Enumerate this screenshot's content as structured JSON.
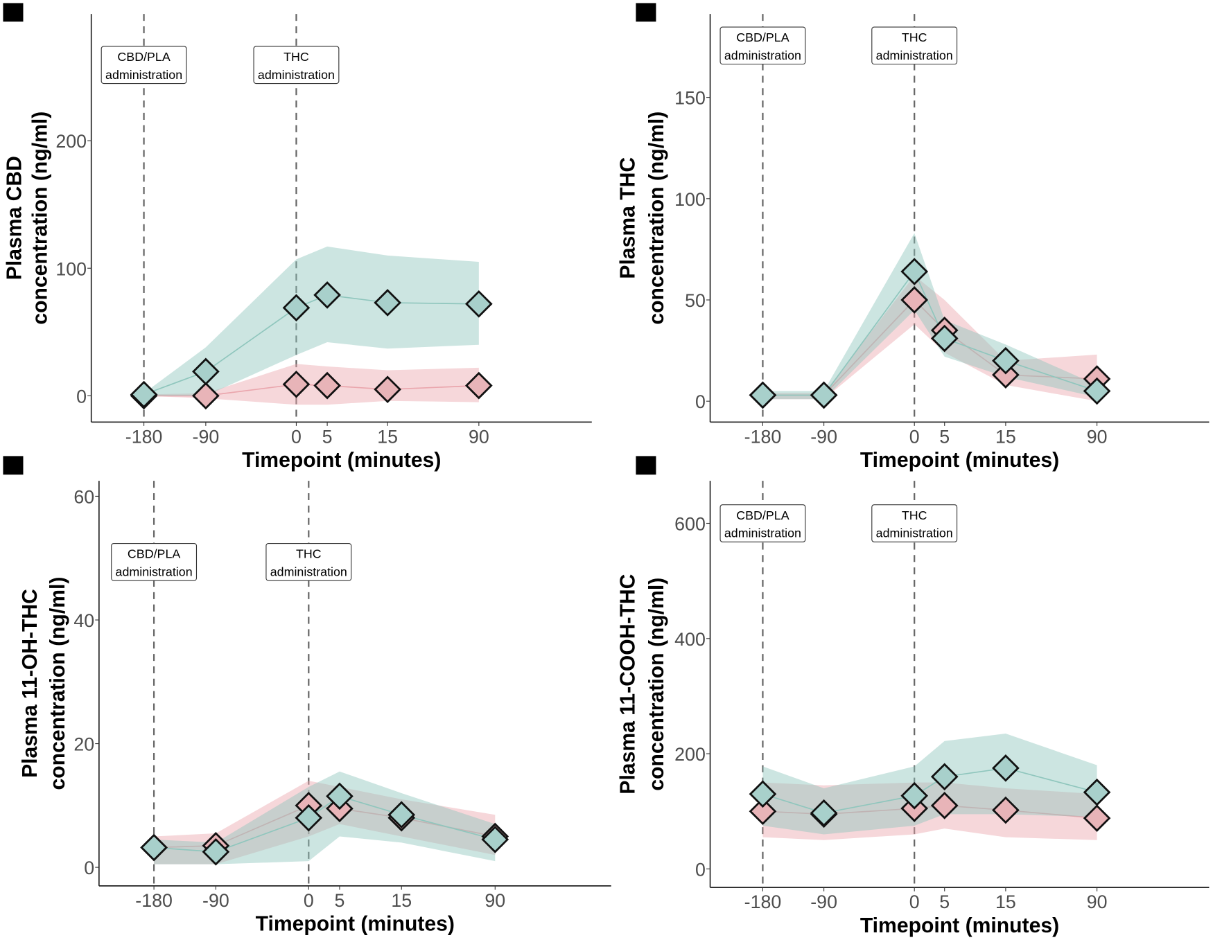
{
  "colors": {
    "cbd": "#a8d0cb",
    "pla": "#e8b4b8",
    "cbd_ribbon": "#8fc6bd",
    "pla_ribbon": "#eaa6ad",
    "vline": "#666666"
  },
  "annotations": [
    {
      "top": "CBD/PLA",
      "bottom": "administration"
    },
    {
      "top": "THC",
      "bottom": "administration"
    }
  ],
  "chart_data": [
    {
      "type": "line",
      "panel_label": "",
      "ylabel_line1": "Plasma CBD",
      "ylabel_line2": "concentration (ng/ml)",
      "xlabel": "Timepoint (minutes)",
      "x_ticks": [
        "-180",
        "-90",
        "0",
        "5",
        "15",
        "90"
      ],
      "y_ticks": [
        "0",
        "100",
        "200"
      ],
      "ylim": [
        -20,
        300
      ],
      "series": [
        {
          "name": "CBD",
          "values": [
            1,
            19,
            69,
            79,
            73,
            72
          ],
          "ci_low": [
            0,
            0,
            32,
            42,
            37,
            40
          ],
          "ci_high": [
            2,
            38,
            107,
            117,
            110,
            105
          ]
        },
        {
          "name": "PLA",
          "values": [
            0,
            0,
            9,
            8,
            5,
            8
          ],
          "ci_low": [
            0,
            -2,
            -7,
            -7,
            -4,
            -5
          ],
          "ci_high": [
            1,
            2,
            25,
            23,
            20,
            22
          ]
        }
      ]
    },
    {
      "type": "line",
      "panel_label": "",
      "ylabel_line1": "Plasma THC",
      "ylabel_line2": "concentration (ng/ml)",
      "xlabel": "Timepoint (minutes)",
      "x_ticks": [
        "-180",
        "-90",
        "0",
        "5",
        "15",
        "90"
      ],
      "y_ticks": [
        "0",
        "50",
        "100",
        "150"
      ],
      "ylim": [
        -10,
        190
      ],
      "series": [
        {
          "name": "CBD",
          "values": [
            3,
            3,
            64,
            31,
            20,
            5
          ],
          "ci_low": [
            1,
            1,
            45,
            22,
            12,
            2
          ],
          "ci_high": [
            5,
            5,
            83,
            40,
            28,
            8
          ]
        },
        {
          "name": "PLA",
          "values": [
            3,
            3,
            50,
            35,
            13,
            11
          ],
          "ci_low": [
            1,
            1,
            38,
            24,
            8,
            0
          ],
          "ci_high": [
            4,
            4,
            62,
            50,
            20,
            23
          ]
        }
      ]
    },
    {
      "type": "line",
      "panel_label": "",
      "ylabel_line1": "Plasma 11-OH-THC",
      "ylabel_line2": "concentration (ng/ml)",
      "xlabel": "Timepoint (minutes)",
      "x_ticks": [
        "-180",
        "-90",
        "0",
        "5",
        "15",
        "90"
      ],
      "y_ticks": [
        "0",
        "20",
        "40",
        "60"
      ],
      "ylim": [
        -3,
        63
      ],
      "series": [
        {
          "name": "CBD",
          "values": [
            3.2,
            2.5,
            8,
            11.5,
            8.5,
            4.5
          ],
          "ci_low": [
            0.5,
            0.5,
            1,
            5,
            4,
            1
          ],
          "ci_high": [
            4.5,
            4,
            13,
            15.5,
            12,
            7
          ]
        },
        {
          "name": "PLA",
          "values": [
            3.2,
            3.5,
            10,
            9.5,
            8,
            5
          ],
          "ci_low": [
            0.5,
            0.5,
            5,
            7,
            5,
            2
          ],
          "ci_high": [
            5,
            5.5,
            14,
            13,
            11,
            8.5
          ]
        }
      ]
    },
    {
      "type": "line",
      "panel_label": "",
      "ylabel_line1": "Plasma 11-COOH-THC",
      "ylabel_line2": "concentration (ng/ml)",
      "xlabel": "Timepoint (minutes)",
      "x_ticks": [
        "-180",
        "-90",
        "0",
        "5",
        "15",
        "90"
      ],
      "y_ticks": [
        "0",
        "200",
        "400",
        "600"
      ],
      "ylim": [
        -30,
        680
      ],
      "series": [
        {
          "name": "CBD",
          "values": [
            130,
            97,
            127,
            160,
            175,
            133
          ],
          "ci_low": [
            75,
            60,
            75,
            95,
            95,
            90
          ],
          "ci_high": [
            178,
            140,
            178,
            222,
            235,
            180
          ]
        },
        {
          "name": "PLA",
          "values": [
            100,
            95,
            105,
            110,
            102,
            88
          ],
          "ci_low": [
            55,
            50,
            60,
            70,
            55,
            50
          ],
          "ci_high": [
            150,
            145,
            150,
            150,
            140,
            130
          ]
        }
      ]
    }
  ]
}
